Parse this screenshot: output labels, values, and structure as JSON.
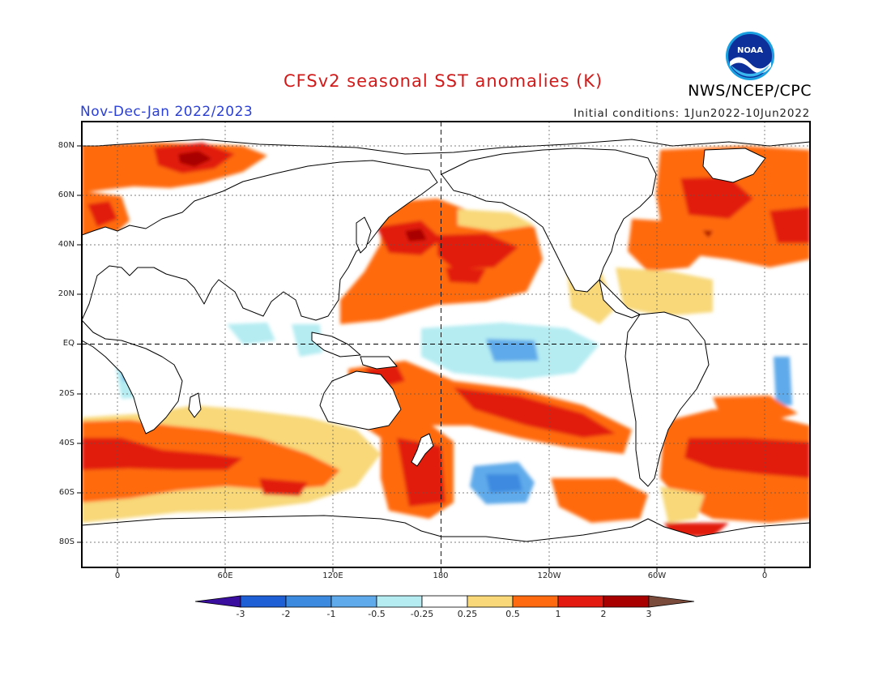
{
  "header": {
    "title": "CFSv2 seasonal SST anomalies (K)",
    "agency": "NWS/NCEP/CPC",
    "season": "Nov-Dec-Jan 2022/2023",
    "initial_conditions": "Initial conditions: 1Jun2022-10Jun2022"
  },
  "logo": {
    "icon": "noaa-logo-icon",
    "text": "NOAA"
  },
  "map": {
    "latitude_labels": [
      "80N",
      "60N",
      "40N",
      "20N",
      "EQ",
      "20S",
      "40S",
      "60S",
      "80S"
    ],
    "longitude_labels": [
      "0",
      "60E",
      "120E",
      "180",
      "120W",
      "60W",
      "0"
    ],
    "colors": {
      "ocean_neutral": "#ffffff",
      "land_outline": "#000000"
    }
  },
  "colorbar": {
    "labels": [
      "-3",
      "-2",
      "-1",
      "-0.5",
      "-0.25",
      "0.25",
      "0.5",
      "1",
      "2",
      "3"
    ],
    "colors": [
      "#3a0fa0",
      "#1f5fd6",
      "#3c8ae0",
      "#5faaea",
      "#b4ecf2",
      "#ffffff",
      "#f8d878",
      "#ff6a10",
      "#e21a10",
      "#a80000",
      "#7a4a3a"
    ]
  }
}
